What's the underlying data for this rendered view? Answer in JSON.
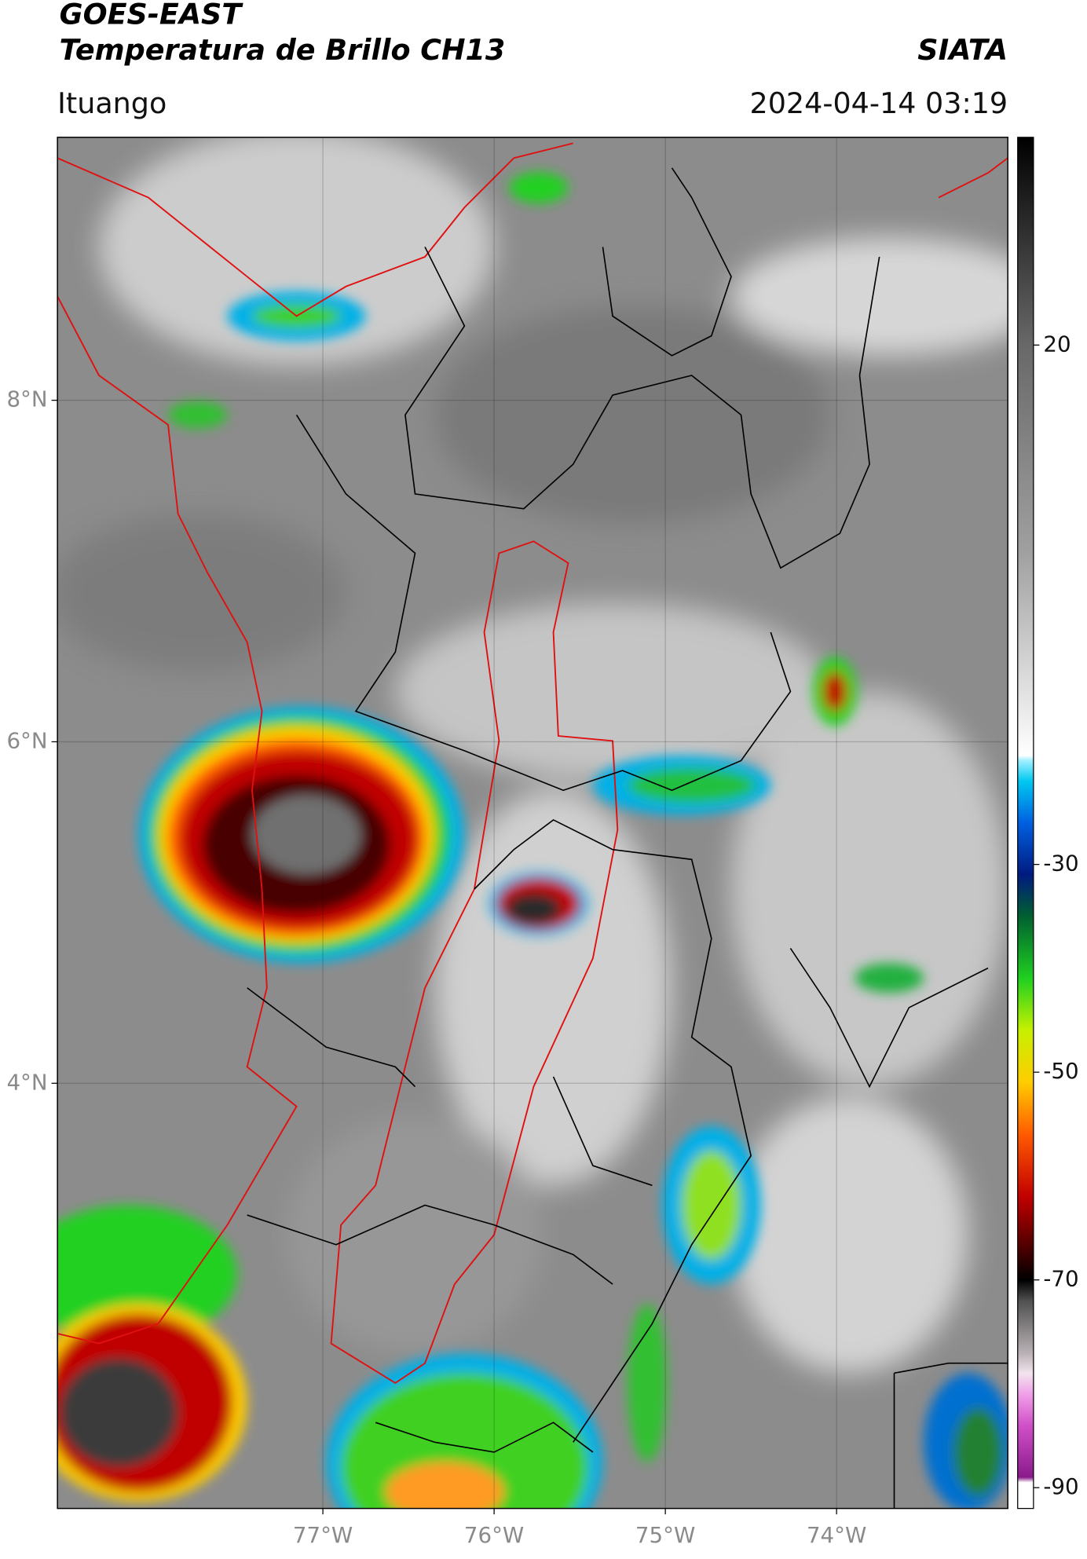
{
  "header": {
    "title_line1": "GOES-EAST",
    "title_line2": "Temperatura de Brillo CH13",
    "brand": "SIATA",
    "location": "Ituango",
    "timestamp": "2024-04-14 03:19"
  },
  "map": {
    "lonlim": [
      -78.55,
      -73.0
    ],
    "latlim": [
      1.51,
      9.54
    ],
    "lonticks": [
      {
        "value": -77,
        "label": "77°W"
      },
      {
        "value": -76,
        "label": "76°W"
      },
      {
        "value": -75,
        "label": "75°W"
      },
      {
        "value": -74,
        "label": "74°W"
      }
    ],
    "latticks": [
      {
        "value": 8,
        "label": "8°N"
      },
      {
        "value": 6,
        "label": "6°N"
      },
      {
        "value": 4,
        "label": "4°N"
      }
    ],
    "grid": true
  },
  "colorbar": {
    "lim": [
      -92,
      40
    ],
    "ticks": [
      20,
      -30,
      -50,
      -70,
      -90
    ],
    "stops": [
      {
        "value": -92,
        "color": "#ffffff"
      },
      {
        "value": -89.5,
        "color": "#ffffff"
      },
      {
        "value": -89,
        "color": "#8a1a8a"
      },
      {
        "value": -84,
        "color": "#d050c8"
      },
      {
        "value": -81,
        "color": "#f0a0e8"
      },
      {
        "value": -79,
        "color": "#f2e4ee"
      },
      {
        "value": -77,
        "color": "#b8b0b4"
      },
      {
        "value": -72,
        "color": "#505050"
      },
      {
        "value": -70,
        "color": "#000000"
      },
      {
        "value": -67,
        "color": "#4a0000"
      },
      {
        "value": -62,
        "color": "#c00000"
      },
      {
        "value": -56,
        "color": "#ff5a00"
      },
      {
        "value": -51,
        "color": "#ffcc00"
      },
      {
        "value": -46,
        "color": "#c8f000"
      },
      {
        "value": -41,
        "color": "#20d020"
      },
      {
        "value": -35,
        "color": "#006030"
      },
      {
        "value": -31,
        "color": "#001a80"
      },
      {
        "value": -26,
        "color": "#0060e0"
      },
      {
        "value": -22,
        "color": "#00c8f0"
      },
      {
        "value": -20,
        "color": "#a0f0ff"
      },
      {
        "value": -19.5,
        "color": "#ffffff"
      },
      {
        "value": 0,
        "color": "#a0a0a0"
      },
      {
        "value": 20,
        "color": "#686868"
      },
      {
        "value": 40,
        "color": "#000000"
      }
    ]
  }
}
